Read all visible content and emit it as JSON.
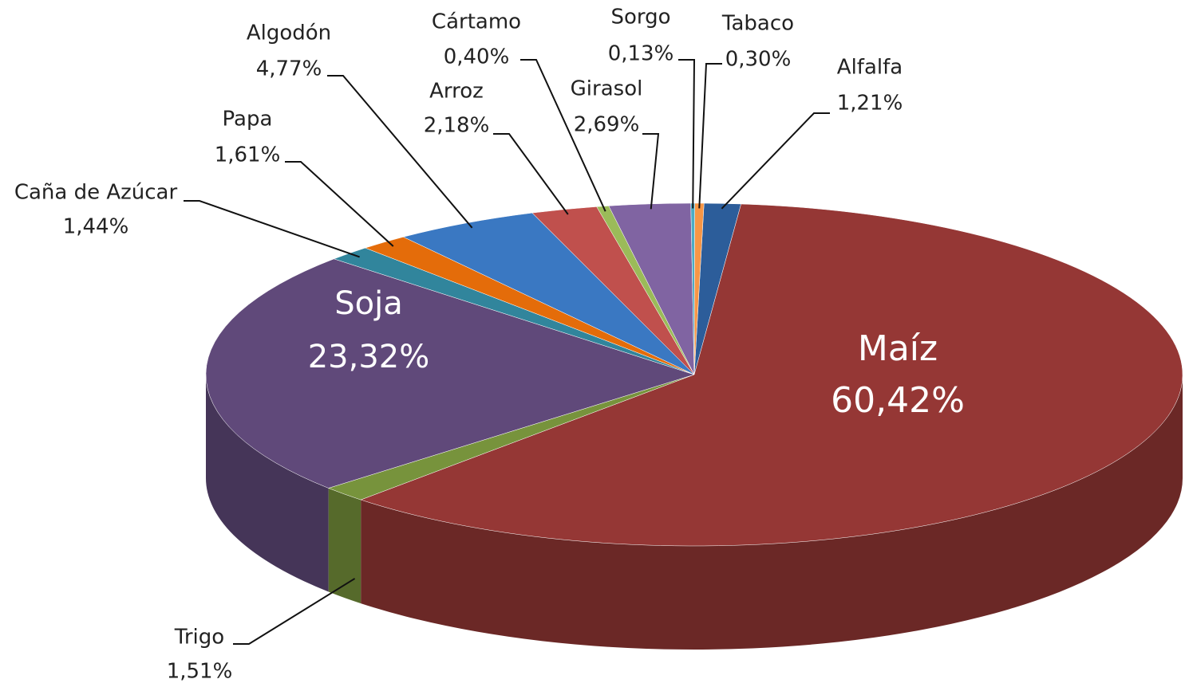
{
  "chart_data": {
    "type": "pie",
    "categories": [
      "Alfalfa",
      "Maíz",
      "Trigo",
      "Soja",
      "Caña de Azúcar",
      "Papa",
      "Algodón",
      "Arroz",
      "Cártamo",
      "Girasol",
      "Sorgo",
      "Tabaco"
    ],
    "values": [
      1.21,
      60.42,
      1.51,
      23.32,
      1.44,
      1.61,
      4.77,
      2.18,
      0.4,
      2.69,
      0.13,
      0.3
    ],
    "value_labels": [
      "1,21%",
      "60,42%",
      "1,51%",
      "23,32%",
      "1,44%",
      "1,61%",
      "4,77%",
      "2,18%",
      "0,40%",
      "2,69%",
      "0,13%",
      "0,30%"
    ],
    "colors": [
      "#2c5d9a",
      "#953735",
      "#77933c",
      "#60497a",
      "#31859c",
      "#e46c0a",
      "#3a78c2",
      "#c0504d",
      "#9bbb59",
      "#8064a2",
      "#4bacc6",
      "#f79646"
    ]
  }
}
